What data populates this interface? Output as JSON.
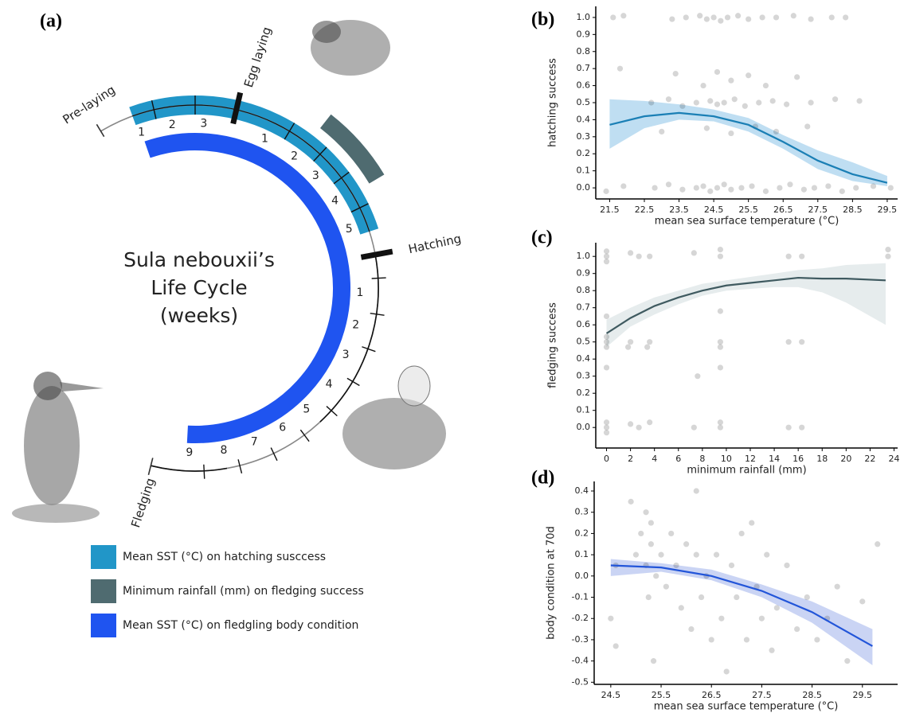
{
  "diagram": {
    "panel_label": "(a)",
    "title": [
      "Sula nebouxii’s",
      "Life Cycle",
      "(weeks)"
    ],
    "stages": [
      "Pre-laying",
      "Egg laying",
      "Hatching",
      "Fledging"
    ],
    "weeks": {
      "pre_laying": [
        1,
        2,
        3
      ],
      "incubation": [
        1,
        2,
        3,
        4,
        5
      ],
      "chick_rearing": [
        1,
        2,
        3,
        4,
        5,
        6,
        7,
        8,
        9
      ]
    },
    "legend": [
      {
        "label": "Mean SST (°C) on hatching susccess",
        "color": "#2196c8"
      },
      {
        "label": "Minimum rainfall (mm) on fledging success",
        "color": "#4f6b70"
      },
      {
        "label": "Mean SST (°C) on fledgling body condition",
        "color": "#1f54f0"
      }
    ]
  },
  "chart_data": [
    {
      "type": "scatter",
      "panel_label": "(b)",
      "ylabel": "hatching success",
      "xlabel": "mean sea surface temperature (°C)",
      "xlim": [
        21.1,
        29.8
      ],
      "xticks": [
        21.5,
        22.5,
        23.5,
        24.5,
        25.5,
        26.5,
        27.5,
        28.5,
        29.5
      ],
      "ylim": [
        -0.065,
        1.065
      ],
      "yticks": [
        {
          "value": 0,
          "label": "0.0"
        },
        0.1,
        0.2,
        0.3,
        0.4,
        0.5,
        0.6,
        0.7,
        0.8,
        0.9,
        {
          "value": 1,
          "label": "1.0"
        }
      ],
      "point_color": "#000000",
      "x": [
        21.6,
        21.9,
        23.3,
        23.7,
        24.1,
        24.3,
        24.5,
        24.7,
        24.9,
        25.2,
        25.5,
        25.9,
        26.3,
        26.8,
        27.3,
        27.9,
        28.3,
        22.7,
        23.2,
        23.6,
        24.0,
        24.4,
        24.6,
        24.8,
        25.1,
        25.4,
        25.8,
        26.2,
        26.6,
        27.3,
        28.0,
        28.7,
        21.8,
        23.4,
        24.2,
        24.6,
        25.0,
        25.5,
        26.0,
        26.9,
        23.0,
        24.3,
        25.0,
        25.7,
        26.3,
        27.2,
        21.4,
        21.9,
        22.8,
        23.2,
        23.6,
        24.0,
        24.2,
        24.4,
        24.6,
        24.8,
        25.0,
        25.3,
        25.6,
        26.0,
        26.4,
        26.7,
        27.1,
        27.4,
        27.8,
        28.2,
        28.6,
        29.1,
        29.6
      ],
      "y": [
        1.0,
        1.01,
        0.99,
        1.0,
        1.01,
        0.99,
        1.0,
        0.98,
        1.0,
        1.01,
        0.99,
        1.0,
        1.0,
        1.01,
        0.99,
        1.0,
        1.0,
        0.5,
        0.52,
        0.48,
        0.5,
        0.51,
        0.49,
        0.5,
        0.52,
        0.48,
        0.5,
        0.51,
        0.49,
        0.5,
        0.52,
        0.51,
        0.7,
        0.67,
        0.6,
        0.68,
        0.63,
        0.66,
        0.6,
        0.65,
        0.33,
        0.35,
        0.32,
        0.36,
        0.33,
        0.36,
        -0.02,
        0.01,
        0.0,
        0.02,
        -0.01,
        0.0,
        0.01,
        -0.02,
        0.0,
        0.02,
        -0.01,
        0.0,
        0.01,
        -0.02,
        0.0,
        0.02,
        -0.01,
        0.0,
        0.01,
        -0.02,
        0.0,
        0.01,
        0.0
      ],
      "fit": {
        "color": "#1a7fb5",
        "band_color": "#a9d3ee",
        "x": [
          21.5,
          22.5,
          23.5,
          24.5,
          25.5,
          26.5,
          27.5,
          28.5,
          29.5
        ],
        "y": [
          0.37,
          0.42,
          0.44,
          0.42,
          0.37,
          0.27,
          0.16,
          0.08,
          0.03
        ],
        "lower": [
          0.23,
          0.35,
          0.4,
          0.39,
          0.33,
          0.23,
          0.11,
          0.04,
          0.01
        ],
        "upper": [
          0.52,
          0.51,
          0.49,
          0.46,
          0.41,
          0.31,
          0.22,
          0.15,
          0.07
        ]
      }
    },
    {
      "type": "scatter",
      "panel_label": "(c)",
      "ylabel": "fledging success",
      "xlabel": "minimum rainfall (mm)",
      "xlim": [
        -0.9,
        24.3
      ],
      "xticks": [
        0,
        2,
        4,
        6,
        8,
        10,
        12,
        14,
        16,
        18,
        20,
        22,
        24
      ],
      "ylim": [
        -0.12,
        1.08
      ],
      "yticks": [
        {
          "value": 0,
          "label": "0.0"
        },
        0.1,
        0.2,
        0.3,
        0.4,
        0.5,
        0.6,
        0.7,
        0.8,
        0.9,
        {
          "value": 1,
          "label": "1.0"
        }
      ],
      "point_color": "#000000",
      "x": [
        0,
        0,
        0,
        0,
        0,
        0,
        0,
        0,
        0,
        0,
        0,
        2,
        2,
        2,
        2.7,
        2.7,
        3.6,
        3.6,
        3.6,
        7.3,
        7.3,
        9.5,
        9.5,
        9.5,
        9.5,
        9.5,
        9.5,
        9.5,
        9.5,
        15.2,
        15.2,
        15.2,
        16.3,
        16.3,
        16.3,
        23.5,
        23.5,
        7.6,
        3.4,
        1.8
      ],
      "y": [
        1.0,
        1.03,
        0.97,
        0.5,
        0.47,
        0.53,
        0.0,
        0.03,
        -0.03,
        0.35,
        0.65,
        1.02,
        0.5,
        0.02,
        1.0,
        0.0,
        1.0,
        0.5,
        0.03,
        1.02,
        0.0,
        1.0,
        1.04,
        0.5,
        0.47,
        0.0,
        0.03,
        0.68,
        0.35,
        1.0,
        0.5,
        0.0,
        1.0,
        0.5,
        0.0,
        1.04,
        1.0,
        0.3,
        0.47,
        0.47
      ],
      "fit": {
        "color": "#3f5a60",
        "band_color": "#dde5e7",
        "x": [
          0,
          2,
          4,
          6,
          8,
          10,
          12,
          14,
          16,
          18,
          20,
          23.3
        ],
        "y": [
          0.55,
          0.64,
          0.71,
          0.76,
          0.8,
          0.83,
          0.845,
          0.86,
          0.875,
          0.87,
          0.87,
          0.86
        ],
        "lower": [
          0.47,
          0.59,
          0.66,
          0.72,
          0.77,
          0.8,
          0.81,
          0.82,
          0.82,
          0.79,
          0.73,
          0.6
        ],
        "upper": [
          0.63,
          0.7,
          0.76,
          0.8,
          0.84,
          0.86,
          0.88,
          0.9,
          0.92,
          0.93,
          0.95,
          0.96
        ]
      }
    },
    {
      "type": "scatter",
      "panel_label": "(d)",
      "ylabel": "body condition at 70d",
      "xlabel": "mean sea surface temperature (°C)",
      "xlim": [
        24.17,
        30.2
      ],
      "xticks": [
        24.5,
        25.5,
        26.5,
        27.5,
        28.5,
        29.5
      ],
      "ylim": [
        -0.51,
        0.445
      ],
      "yticks": [
        -0.5,
        -0.4,
        -0.3,
        -0.2,
        -0.1,
        {
          "value": 0,
          "label": "0.0"
        },
        0.1,
        0.2,
        0.3,
        0.4
      ],
      "point_color": "#000000",
      "x": [
        24.5,
        24.6,
        24.6,
        24.9,
        25.0,
        25.1,
        25.2,
        25.2,
        25.25,
        25.3,
        25.3,
        25.35,
        25.4,
        25.5,
        25.6,
        25.7,
        25.8,
        25.9,
        26.0,
        26.1,
        26.2,
        26.2,
        26.3,
        26.4,
        26.5,
        26.6,
        26.7,
        26.8,
        26.9,
        27.0,
        27.1,
        27.2,
        27.3,
        27.4,
        27.5,
        27.6,
        27.7,
        27.8,
        28.0,
        28.2,
        28.4,
        28.6,
        28.8,
        29.0,
        29.2,
        29.5,
        29.8
      ],
      "y": [
        -0.2,
        0.05,
        -0.33,
        0.35,
        0.1,
        0.2,
        0.3,
        0.05,
        -0.1,
        0.25,
        0.15,
        -0.4,
        0.0,
        0.1,
        -0.05,
        0.2,
        0.05,
        -0.15,
        0.15,
        -0.25,
        0.4,
        0.1,
        -0.1,
        0.0,
        -0.3,
        0.1,
        -0.2,
        -0.45,
        0.05,
        -0.1,
        0.2,
        -0.3,
        0.25,
        -0.05,
        -0.2,
        0.1,
        -0.35,
        -0.15,
        0.05,
        -0.25,
        -0.1,
        -0.3,
        -0.2,
        -0.05,
        -0.4,
        -0.12,
        0.15
      ],
      "fit": {
        "color": "#2255d9",
        "band_color": "#b8c6f0",
        "x": [
          24.5,
          25.5,
          26.5,
          27.5,
          28.5,
          29.7
        ],
        "y": [
          0.05,
          0.04,
          0.0,
          -0.07,
          -0.17,
          -0.33
        ],
        "lower": [
          0.0,
          0.02,
          -0.02,
          -0.1,
          -0.22,
          -0.42
        ],
        "upper": [
          0.08,
          0.06,
          0.03,
          -0.04,
          -0.12,
          -0.25
        ]
      }
    }
  ]
}
